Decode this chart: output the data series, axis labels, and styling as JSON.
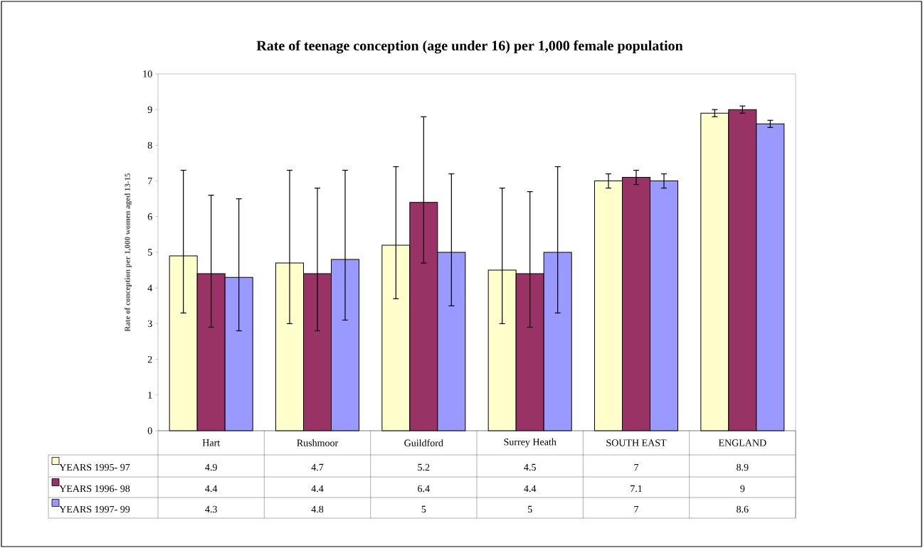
{
  "chart_data": {
    "type": "bar",
    "title": "Rate of teenage conception (age under 16) per 1,000 female population",
    "ylabel": "Rate of conception per 1,000 women aged 13-15",
    "categories": [
      "Hart",
      "Rushmoor",
      "Guildford",
      "Surrey Heath",
      "SOUTH EAST",
      "ENGLAND"
    ],
    "series": [
      {
        "name": "YEARS 1995- 97",
        "color": "#ffffcc",
        "values": [
          4.9,
          4.7,
          5.2,
          4.5,
          7,
          8.9
        ],
        "errors": [
          [
            3.3,
            7.3
          ],
          [
            3.0,
            7.3
          ],
          [
            3.7,
            7.4
          ],
          [
            3.0,
            6.8
          ],
          [
            6.8,
            7.2
          ],
          [
            8.8,
            9.0
          ]
        ]
      },
      {
        "name": "YEARS 1996- 98",
        "color": "#993366",
        "values": [
          4.4,
          4.4,
          6.4,
          4.4,
          7.1,
          9
        ],
        "errors": [
          [
            2.9,
            6.6
          ],
          [
            2.8,
            6.8
          ],
          [
            4.7,
            8.8
          ],
          [
            2.9,
            6.7
          ],
          [
            6.9,
            7.3
          ],
          [
            8.9,
            9.1
          ]
        ]
      },
      {
        "name": "YEARS 1997- 99",
        "color": "#9999ff",
        "values": [
          4.3,
          4.8,
          5,
          5,
          7,
          8.6
        ],
        "errors": [
          [
            2.8,
            6.5
          ],
          [
            3.1,
            7.3
          ],
          [
            3.5,
            7.2
          ],
          [
            3.3,
            7.4
          ],
          [
            6.8,
            7.2
          ],
          [
            8.5,
            8.7
          ]
        ]
      }
    ],
    "ylim": [
      0,
      10
    ],
    "yticks": [
      0,
      1,
      2,
      3,
      4,
      5,
      6,
      7,
      8,
      9,
      10
    ],
    "data_labels": true,
    "legend": "bottom left",
    "grid": false
  }
}
